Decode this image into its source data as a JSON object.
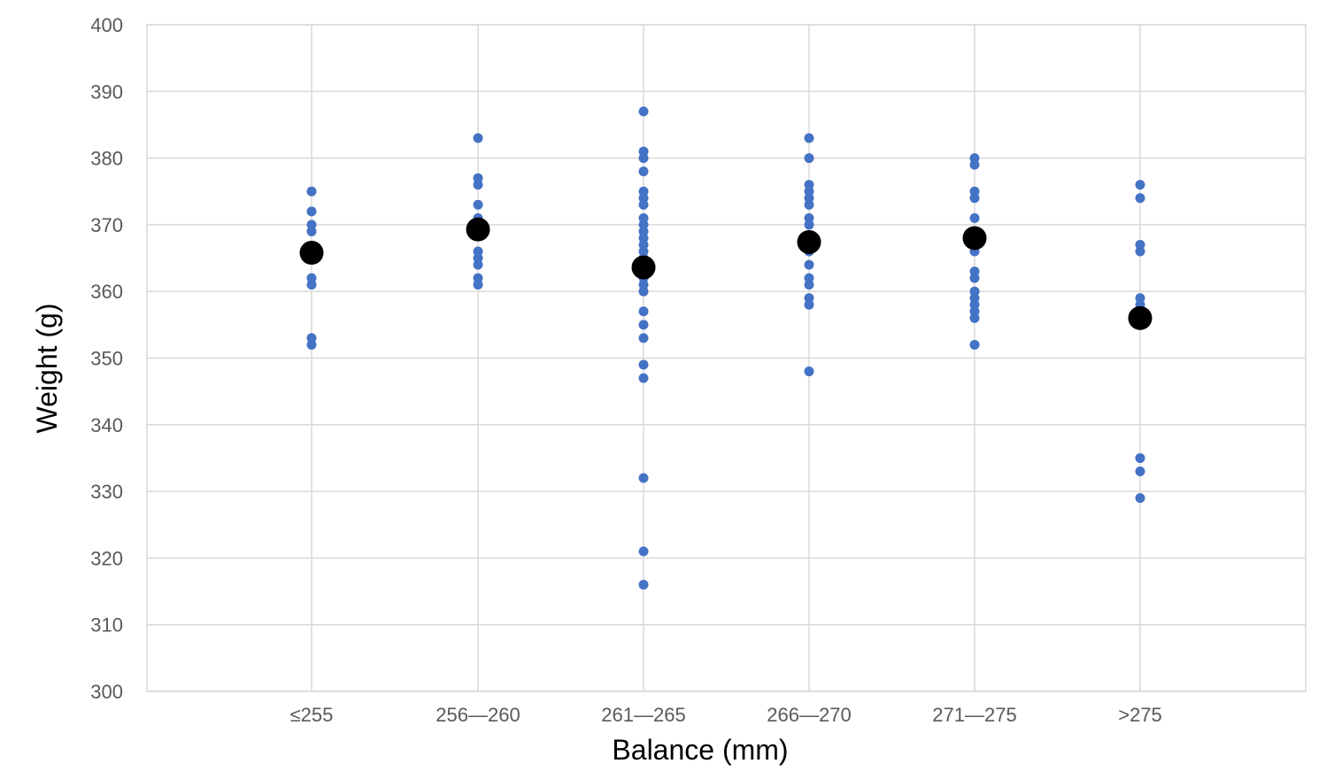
{
  "chart_data": {
    "type": "scatter",
    "xlabel": "Balance (mm)",
    "ylabel": "Weight (g)",
    "categories": [
      "≤255",
      "256—260",
      "261—265",
      "266—270",
      "271—275",
      ">275"
    ],
    "ylim": [
      300,
      400
    ],
    "yticks": [
      300,
      310,
      320,
      330,
      340,
      350,
      360,
      370,
      380,
      390,
      400
    ],
    "grid": true,
    "legend": "none",
    "colors": {
      "points": "#4472C4",
      "means": "#000000",
      "grid": "#d9d9d9"
    },
    "series": [
      {
        "values": [
          [
            375,
            372,
            370,
            369,
            362,
            361,
            353,
            352
          ],
          [
            383,
            377,
            376,
            373,
            371,
            370,
            366,
            365,
            364,
            362,
            361
          ],
          [
            387,
            381,
            380,
            378,
            375,
            374,
            373,
            371,
            370,
            369,
            368,
            367,
            366,
            365,
            362,
            361,
            360,
            357,
            355,
            353,
            349,
            347,
            332,
            321,
            316
          ],
          [
            383,
            380,
            376,
            375,
            374,
            373,
            371,
            370,
            368,
            366,
            364,
            362,
            361,
            359,
            358,
            348
          ],
          [
            380,
            379,
            375,
            374,
            371,
            369,
            367,
            366,
            363,
            362,
            360,
            359,
            358,
            357,
            356,
            352
          ],
          [
            376,
            374,
            367,
            366,
            359,
            358,
            357,
            335,
            333,
            329
          ]
        ]
      },
      {
        "values": [
          365.8,
          369.3,
          363.6,
          367.4,
          368.0,
          356.0
        ]
      }
    ]
  }
}
